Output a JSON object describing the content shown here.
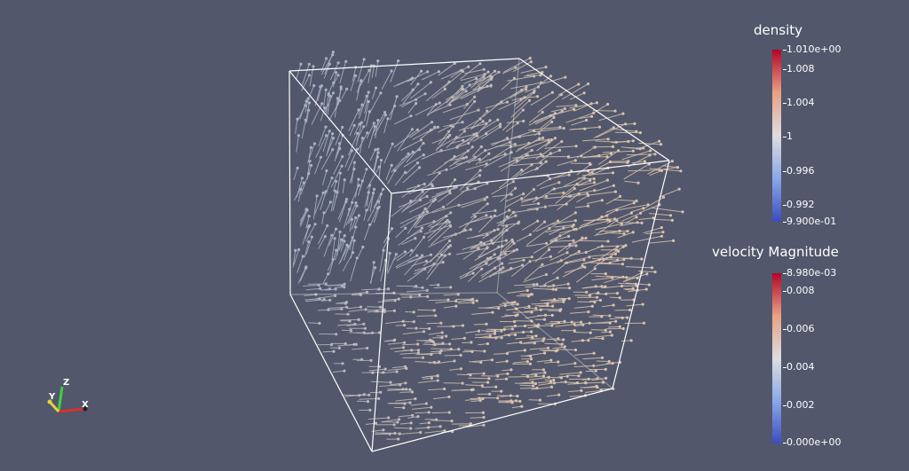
{
  "legends": {
    "density": {
      "title": "density",
      "ticks": [
        "1.010e+00",
        "1.008",
        "1.004",
        "1",
        "0.996",
        "0.992",
        "9.900e-01"
      ]
    },
    "velocity": {
      "title": "velocity Magnitude",
      "ticks": [
        "8.980e-03",
        "0.008",
        "0.006",
        "0.004",
        "0.002",
        "0.000e+00"
      ]
    }
  },
  "orientation_axes": {
    "x": "X",
    "y": "Y",
    "z": "Z"
  },
  "colors": {
    "background": "#52576b",
    "colormap_low": "#3b4cc0",
    "colormap_mid": "#dddddd",
    "colormap_high": "#b40426",
    "glyph_cool": "#a9b2c4",
    "glyph_warm": "#d8c2ad",
    "outline": "#ffffff"
  }
}
